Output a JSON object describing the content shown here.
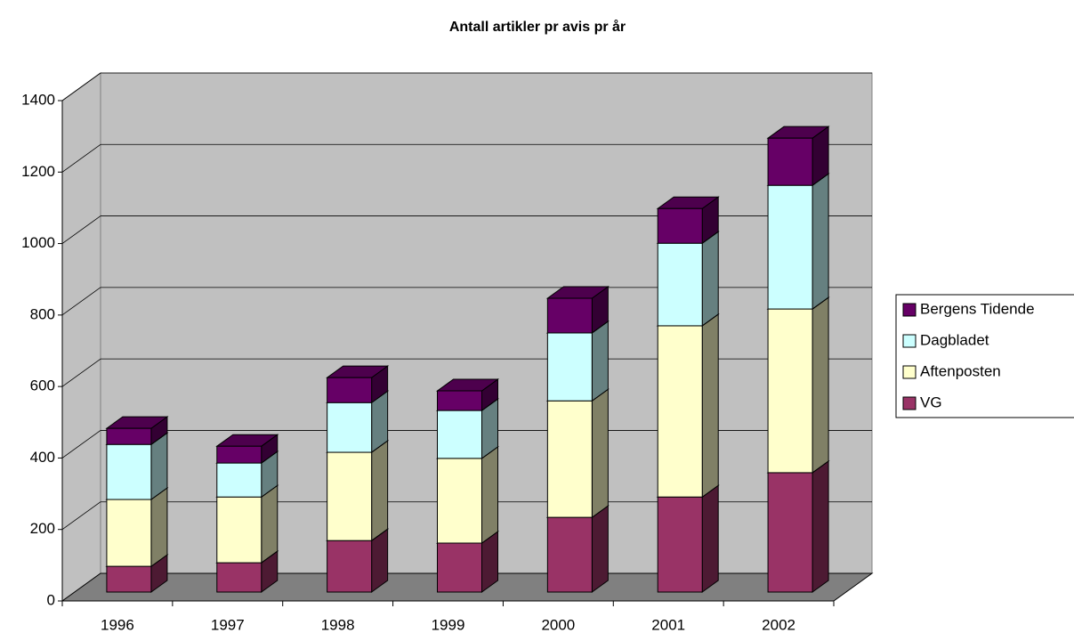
{
  "chart_data": {
    "type": "bar3d_stacked",
    "title": "Antall artikler pr avis pr år",
    "categories": [
      "1996",
      "1997",
      "1998",
      "1999",
      "2000",
      "2001",
      "2002"
    ],
    "series": [
      {
        "name": "VG",
        "color": "#993366",
        "values": [
          72,
          82,
          144,
          137,
          209,
          266,
          334
        ]
      },
      {
        "name": "Aftenposten",
        "color": "#ffffcc",
        "values": [
          187,
          184,
          247,
          237,
          326,
          479,
          458
        ]
      },
      {
        "name": "Dagbladet",
        "color": "#ccffff",
        "values": [
          154,
          95,
          139,
          134,
          190,
          231,
          346
        ]
      },
      {
        "name": "Bergens Tidende",
        "color": "#660066",
        "values": [
          45,
          47,
          70,
          55,
          97,
          97,
          132
        ]
      }
    ],
    "ylim": [
      0,
      1400
    ],
    "yticks": [
      0,
      200,
      400,
      600,
      800,
      1000,
      1200,
      1400
    ],
    "grid": true,
    "legend": "right"
  }
}
